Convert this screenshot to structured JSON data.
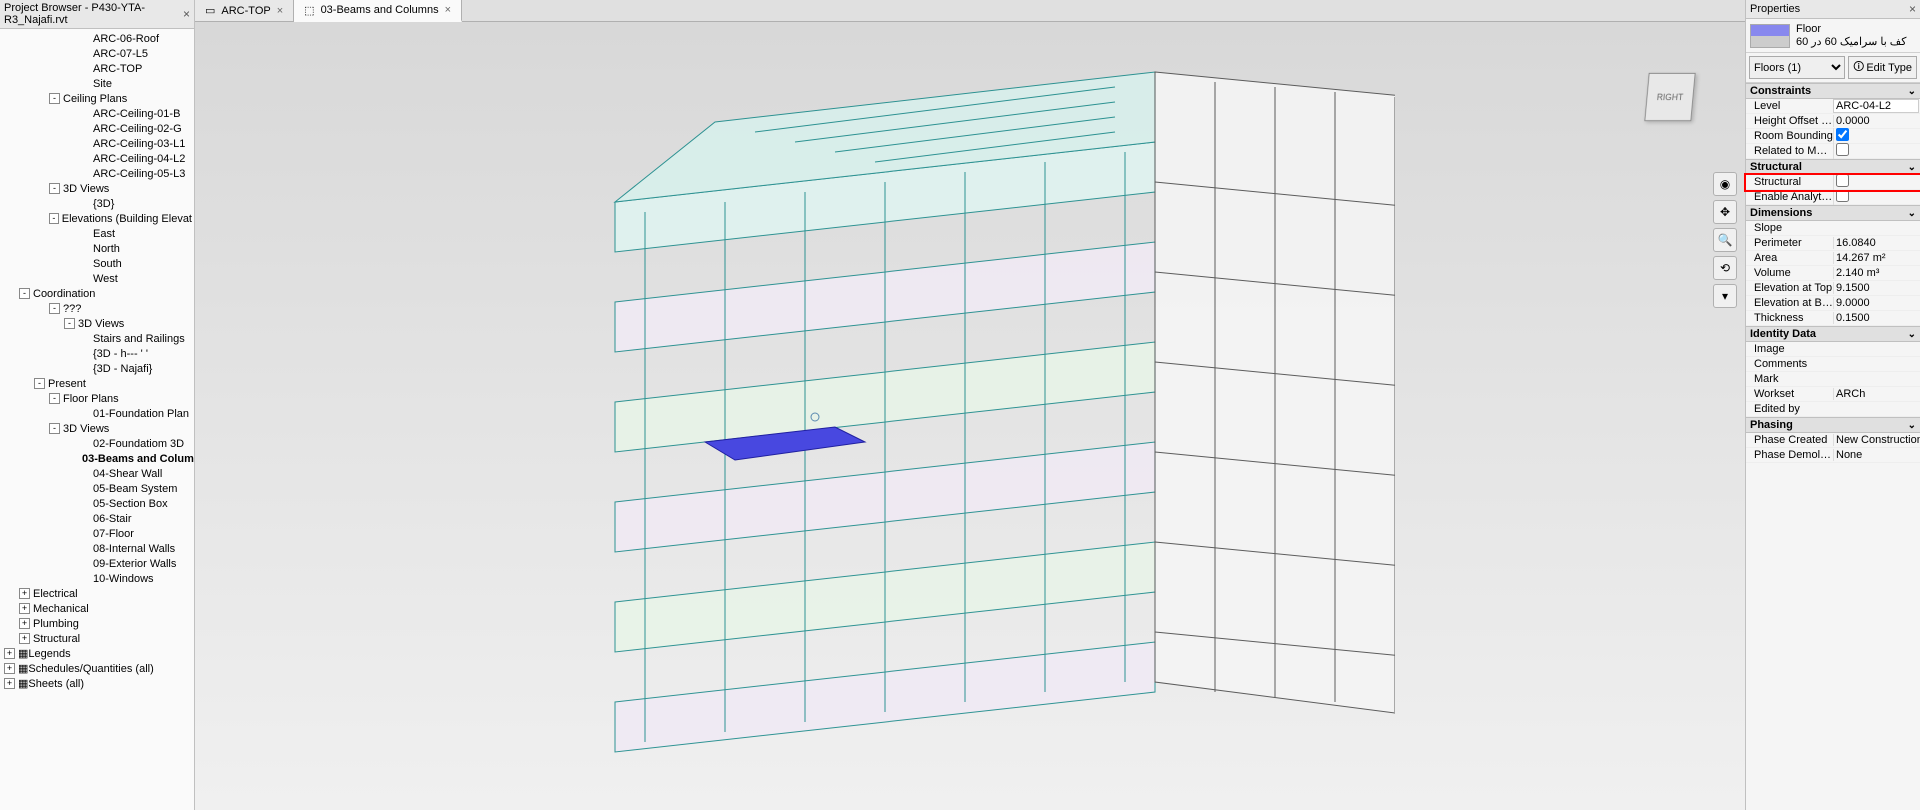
{
  "leftPanel": {
    "title": "Project Browser - P430-YTA-R3_Najafi.rvt",
    "tree": [
      {
        "indent": 5,
        "label": "ARC-06-Roof"
      },
      {
        "indent": 5,
        "label": "ARC-07-L5"
      },
      {
        "indent": 5,
        "label": "ARC-TOP"
      },
      {
        "indent": 5,
        "label": "Site"
      },
      {
        "indent": 3,
        "exp": "-",
        "label": "Ceiling Plans"
      },
      {
        "indent": 5,
        "label": "ARC-Ceiling-01-B"
      },
      {
        "indent": 5,
        "label": "ARC-Ceiling-02-G"
      },
      {
        "indent": 5,
        "label": "ARC-Ceiling-03-L1"
      },
      {
        "indent": 5,
        "label": "ARC-Ceiling-04-L2"
      },
      {
        "indent": 5,
        "label": "ARC-Ceiling-05-L3"
      },
      {
        "indent": 3,
        "exp": "-",
        "label": "3D Views"
      },
      {
        "indent": 5,
        "label": "{3D}"
      },
      {
        "indent": 3,
        "exp": "-",
        "label": "Elevations (Building Elevat"
      },
      {
        "indent": 5,
        "label": "East"
      },
      {
        "indent": 5,
        "label": "North"
      },
      {
        "indent": 5,
        "label": "South"
      },
      {
        "indent": 5,
        "label": "West"
      },
      {
        "indent": 1,
        "exp": "-",
        "label": "Coordination"
      },
      {
        "indent": 3,
        "exp": "-",
        "label": "???"
      },
      {
        "indent": 4,
        "exp": "-",
        "label": "3D Views"
      },
      {
        "indent": 5,
        "label": "Stairs and Railings"
      },
      {
        "indent": 5,
        "label": "{3D - h---    '     '"
      },
      {
        "indent": 5,
        "label": "{3D - Najafi}"
      },
      {
        "indent": 2,
        "exp": "-",
        "label": "Present"
      },
      {
        "indent": 3,
        "exp": "-",
        "label": "Floor Plans"
      },
      {
        "indent": 5,
        "label": "01-Foundation Plan"
      },
      {
        "indent": 3,
        "exp": "-",
        "label": "3D Views"
      },
      {
        "indent": 5,
        "label": "02-Foundatiom 3D"
      },
      {
        "indent": 5,
        "label": "03-Beams and Colum",
        "selected": true
      },
      {
        "indent": 5,
        "label": "04-Shear Wall"
      },
      {
        "indent": 5,
        "label": "05-Beam System"
      },
      {
        "indent": 5,
        "label": "05-Section Box"
      },
      {
        "indent": 5,
        "label": "06-Stair"
      },
      {
        "indent": 5,
        "label": "07-Floor"
      },
      {
        "indent": 5,
        "label": "08-Internal Walls"
      },
      {
        "indent": 5,
        "label": "09-Exterior Walls"
      },
      {
        "indent": 5,
        "label": "10-Windows"
      },
      {
        "indent": 1,
        "exp": "+",
        "label": "Electrical"
      },
      {
        "indent": 1,
        "exp": "+",
        "label": "Mechanical"
      },
      {
        "indent": 1,
        "exp": "+",
        "label": "Plumbing"
      },
      {
        "indent": 1,
        "exp": "+",
        "label": "Structural"
      },
      {
        "indent": 0,
        "exp": "+",
        "label": "Legends",
        "icon": true
      },
      {
        "indent": 0,
        "exp": "+",
        "label": "Schedules/Quantities (all)",
        "icon": true
      },
      {
        "indent": 0,
        "exp": "+",
        "label": "Sheets (all)",
        "icon": true
      }
    ]
  },
  "tabs": [
    {
      "label": "ARC-TOP",
      "active": false
    },
    {
      "label": "03-Beams and Columns",
      "active": true
    }
  ],
  "viewcube": {
    "face": "RIGHT"
  },
  "rightPanel": {
    "title": "Properties",
    "typeName": "Floor",
    "typeDesc": "کف با سرامیک 60 در 60",
    "selector": "Floors (1)",
    "editType": "Edit Type",
    "sections": [
      {
        "title": "Constraints",
        "rows": [
          {
            "label": "Level",
            "value": "ARC-04-L2",
            "editable": true
          },
          {
            "label": "Height Offset Fr...",
            "value": "0.0000"
          },
          {
            "label": "Room Bounding",
            "checkbox": true,
            "checked": true
          },
          {
            "label": "Related to Mass",
            "checkbox": true,
            "checked": false
          }
        ]
      },
      {
        "title": "Structural",
        "highlighted": true,
        "rows": [
          {
            "label": "Structural",
            "checkbox": true,
            "checked": false,
            "highlighted": true
          },
          {
            "label": "Enable Analytic...",
            "checkbox": true,
            "checked": false
          }
        ]
      },
      {
        "title": "Dimensions",
        "rows": [
          {
            "label": "Slope",
            "value": ""
          },
          {
            "label": "Perimeter",
            "value": "16.0840"
          },
          {
            "label": "Area",
            "value": "14.267 m²"
          },
          {
            "label": "Volume",
            "value": "2.140 m³"
          },
          {
            "label": "Elevation at Top",
            "value": "9.1500"
          },
          {
            "label": "Elevation at Bot...",
            "value": "9.0000"
          },
          {
            "label": "Thickness",
            "value": "0.1500"
          }
        ]
      },
      {
        "title": "Identity Data",
        "rows": [
          {
            "label": "Image",
            "value": ""
          },
          {
            "label": "Comments",
            "value": ""
          },
          {
            "label": "Mark",
            "value": ""
          },
          {
            "label": "Workset",
            "value": "ARCh"
          },
          {
            "label": "Edited by",
            "value": ""
          }
        ]
      },
      {
        "title": "Phasing",
        "rows": [
          {
            "label": "Phase Created",
            "value": "New Construction"
          },
          {
            "label": "Phase Demolish...",
            "value": "None"
          }
        ]
      }
    ]
  }
}
